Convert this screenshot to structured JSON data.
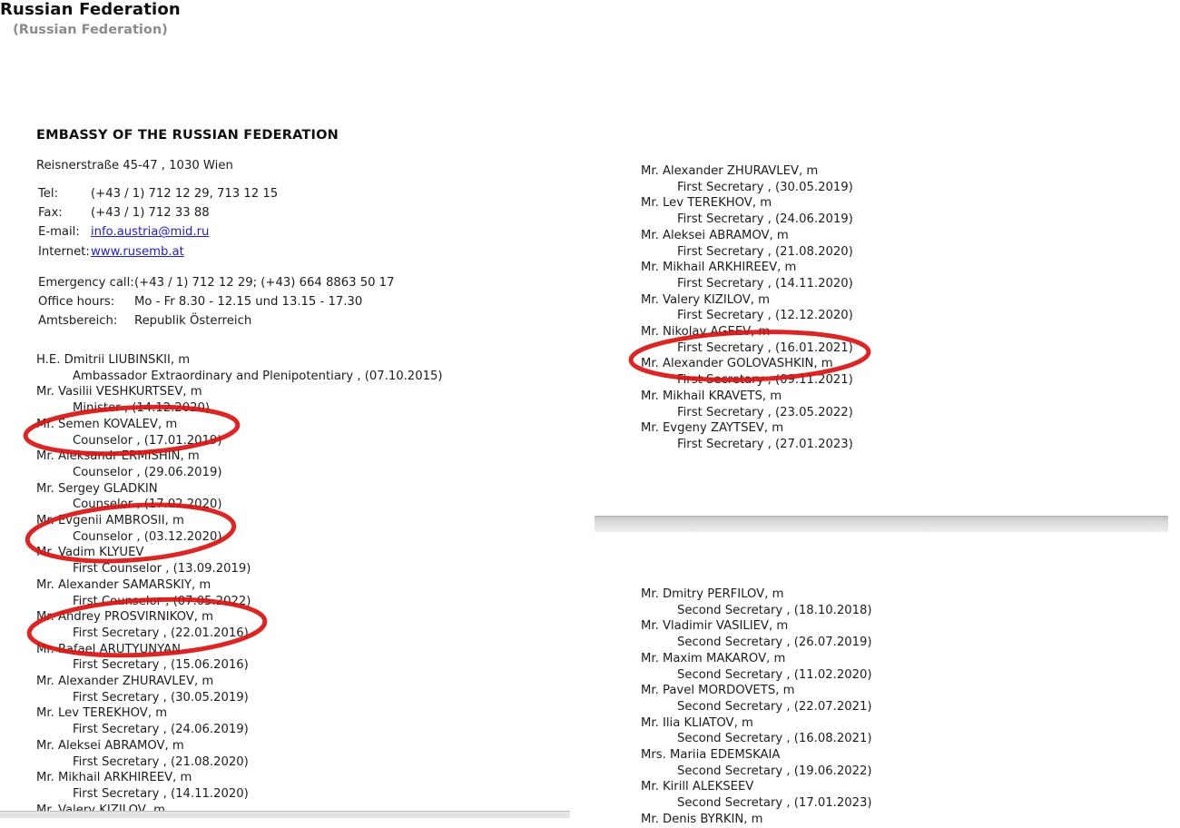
{
  "header": {
    "country_title": "Russian Federation",
    "country_subtitle": "(Russian Federation)",
    "embassy_heading": "EMBASSY OF THE RUSSIAN FEDERATION",
    "address": "Reisnerstraße 45-47 , 1030 Wien"
  },
  "contact": {
    "tel_label": "Tel:",
    "tel_value": "(+43 / 1) 712 12 29, 713 12 15",
    "fax_label": "Fax:",
    "fax_value": "(+43 / 1) 712 33 88",
    "email_label": "E-mail:",
    "email_value": "info.austria@mid.ru",
    "internet_label": "Internet:",
    "internet_value": "www.rusemb.at"
  },
  "info": {
    "emergency_label": "Emergency call:",
    "emergency_value": "(+43 / 1) 712 12 29; (+43) 664 8863 50 17",
    "office_hours_label": "Office hours:",
    "office_hours_value": "Mo - Fr 8.30 - 12.15 und 13.15 - 17.30",
    "district_label": "Amtsbereich:",
    "district_value": "Republik Österreich"
  },
  "left_list": [
    {
      "name": "H.E. Dmitrii LIUBINSKII, m",
      "role": "Ambassador Extraordinary and Plenipotentiary , (07.10.2015)"
    },
    {
      "name": "Mr. Vasilii VESHKURTSEV, m",
      "role": "Minister , (14.12.2020)"
    },
    {
      "name": "Mr. Semen KOVALEV, m",
      "role": "Counselor , (17.01.2019)"
    },
    {
      "name": "Mr. Aleksandr ERMISHIN, m",
      "role": "Counselor , (29.06.2019)"
    },
    {
      "name": "Mr. Sergey GLADKIN",
      "role": "Counselor , (17.02.2020)"
    },
    {
      "name": "Mr. Evgenii AMBROSII, m",
      "role": "Counselor , (03.12.2020)"
    },
    {
      "name": "Mr. Vadim KLYUEV",
      "role": "First Counselor , (13.09.2019)"
    },
    {
      "name": "Mr. Alexander SAMARSKIY, m",
      "role": "First Counselor , (07.05.2022)"
    },
    {
      "name": "Mr. Andrey PROSVIRNIKOV, m",
      "role": "First Secretary , (22.01.2016)"
    },
    {
      "name": "Mr. Rafael ARUTYUNYAN",
      "role": "First Secretary , (15.06.2016)"
    },
    {
      "name": "Mr. Alexander ZHURAVLEV, m",
      "role": "First Secretary , (30.05.2019)"
    },
    {
      "name": "Mr. Lev TEREKHOV, m",
      "role": "First Secretary , (24.06.2019)"
    },
    {
      "name": "Mr. Aleksei ABRAMOV, m",
      "role": "First Secretary , (21.08.2020)"
    },
    {
      "name": "Mr. Mikhail ARKHIREEV, m",
      "role": "First Secretary , (14.11.2020)"
    },
    {
      "name": "Mr. Valery KIZILOV, m",
      "role": ""
    }
  ],
  "right_list_top": [
    {
      "name": "Mr. Alexander ZHURAVLEV, m",
      "role": "First Secretary , (30.05.2019)"
    },
    {
      "name": "Mr. Lev TEREKHOV, m",
      "role": "First Secretary , (24.06.2019)"
    },
    {
      "name": "Mr. Aleksei ABRAMOV, m",
      "role": "First Secretary , (21.08.2020)"
    },
    {
      "name": "Mr. Mikhail ARKHIREEV, m",
      "role": "First Secretary , (14.11.2020)"
    },
    {
      "name": "Mr. Valery KIZILOV, m",
      "role": "First Secretary , (12.12.2020)"
    },
    {
      "name": "Mr. Nikolay AGEEV, m",
      "role": "First Secretary , (16.01.2021)"
    },
    {
      "name": "Mr. Alexander GOLOVASHKIN, m",
      "role": "First Secretary , (09.11.2021)"
    },
    {
      "name": "Mr. Mikhail KRAVETS, m",
      "role": "First Secretary , (23.05.2022)"
    },
    {
      "name": "Mr. Evgeny ZAYTSEV, m",
      "role": "First Secretary , (27.01.2023)"
    }
  ],
  "right_list_bottom": [
    {
      "name": "Mr. Dmitry PERFILOV, m",
      "role": "Second Secretary , (18.10.2018)"
    },
    {
      "name": "Mr. Vladimir VASILIEV, m",
      "role": "Second Secretary , (26.07.2019)"
    },
    {
      "name": "Mr. Maxim MAKAROV, m",
      "role": "Second Secretary , (11.02.2020)"
    },
    {
      "name": "Mr. Pavel MORDOVETS, m",
      "role": "Second Secretary , (22.07.2021)"
    },
    {
      "name": "Mr. Ilia KLIATOV, m",
      "role": "Second Secretary , (16.08.2021)"
    },
    {
      "name": "Mrs. Mariia EDEMSKAIA",
      "role": "Second Secretary , (19.06.2022)"
    },
    {
      "name": "Mr. Kirill ALEKSEEV",
      "role": "Second Secretary , (17.01.2023)"
    },
    {
      "name": "Mr. Denis BYRKIN, m",
      "role": ""
    }
  ],
  "annotations": {
    "circle_color": "#d81414",
    "circled_names": [
      "Mr. Semen KOVALEV, m",
      "Mr. Evgenii AMBROSII, m",
      "Mr. Andrey PROSVIRNIKOV, m",
      "Mr. Alexander GOLOVASHKIN, m"
    ]
  },
  "colors": {
    "text": "#1d1d1d",
    "subtitle_gray": "#8c8c8c",
    "link_blue": "#2323bd",
    "separator_gray": "#d9d9d9"
  }
}
